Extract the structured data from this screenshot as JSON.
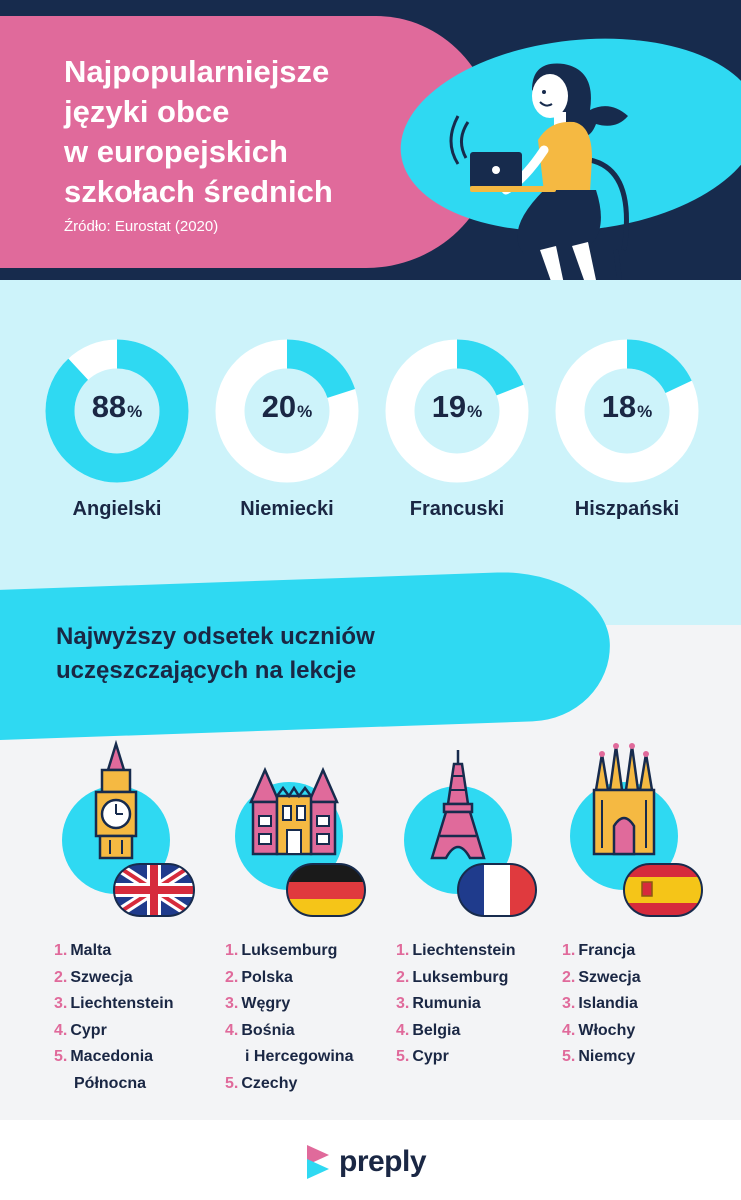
{
  "header": {
    "title_lines": [
      "Najpopularniejsze",
      "języki obce",
      "w europejskich",
      "szkołach średnich"
    ],
    "source": "Źródło: Eurostat (2020)"
  },
  "chart_data": {
    "type": "pie",
    "categories": [
      "Angielski",
      "Niemiecki",
      "Francuski",
      "Hiszpański"
    ],
    "values": [
      88,
      20,
      19,
      18
    ],
    "unit": "%",
    "colors": {
      "fill": "#2fd9f2",
      "track": "#ffffff"
    }
  },
  "section2": {
    "title_lines": [
      "Najwyższy odsetek uczniów",
      "uczęszczających na lekcje"
    ]
  },
  "country_lists": [
    {
      "landmark": "big-ben-icon",
      "flag": "uk-flag-icon",
      "items": [
        {
          "rank": "1.",
          "name": "Malta"
        },
        {
          "rank": "2.",
          "name": "Szwecja"
        },
        {
          "rank": "3.",
          "name": "Liechtenstein"
        },
        {
          "rank": "4.",
          "name": "Cypr"
        },
        {
          "rank": "5.",
          "name": "Macedonia",
          "cont": "Północna"
        }
      ]
    },
    {
      "landmark": "castle-icon",
      "flag": "germany-flag-icon",
      "items": [
        {
          "rank": "1.",
          "name": "Luksemburg"
        },
        {
          "rank": "2.",
          "name": "Polska"
        },
        {
          "rank": "3.",
          "name": "Węgry"
        },
        {
          "rank": "4.",
          "name": "Bośnia",
          "cont": "i Hercegowina"
        },
        {
          "rank": "5.",
          "name": "Czechy"
        }
      ]
    },
    {
      "landmark": "eiffel-tower-icon",
      "flag": "france-flag-icon",
      "items": [
        {
          "rank": "1.",
          "name": "Liechtenstein"
        },
        {
          "rank": "2.",
          "name": "Luksemburg"
        },
        {
          "rank": "3.",
          "name": "Rumunia"
        },
        {
          "rank": "4.",
          "name": "Belgia"
        },
        {
          "rank": "5.",
          "name": "Cypr"
        }
      ]
    },
    {
      "landmark": "sagrada-familia-icon",
      "flag": "spain-flag-icon",
      "items": [
        {
          "rank": "1.",
          "name": "Francja"
        },
        {
          "rank": "2.",
          "name": "Szwecja"
        },
        {
          "rank": "3.",
          "name": "Islandia"
        },
        {
          "rank": "4.",
          "name": "Włochy"
        },
        {
          "rank": "5.",
          "name": "Niemcy"
        }
      ]
    }
  ],
  "footer": {
    "brand": "preply",
    "logo_icon": "preply-logo-icon"
  },
  "colors": {
    "navy": "#172b4d",
    "pink": "#e06a9b",
    "cyan": "#2fd9f2",
    "light_cyan": "#cdf3fa",
    "gray": "#f3f4f6"
  }
}
